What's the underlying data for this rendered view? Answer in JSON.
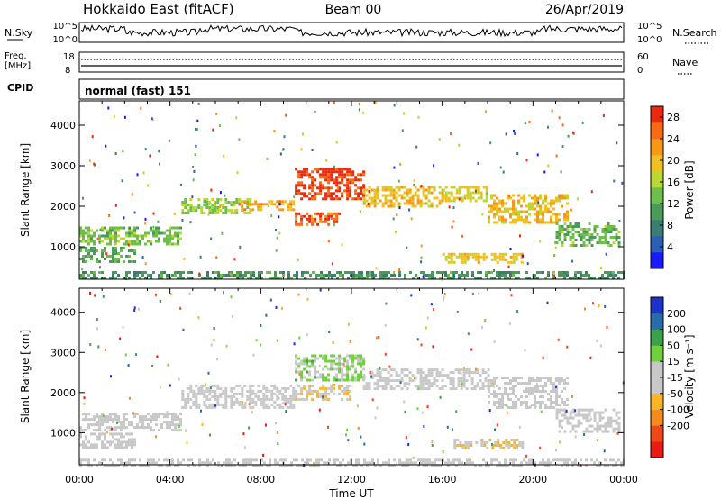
{
  "header": {
    "station": "Hokkaido East (fitACF)",
    "beam": "Beam 00",
    "date": "26/Apr/2019"
  },
  "panels": {
    "nsky": {
      "label": "N.Sky",
      "left_ticks": [
        "10^5",
        "10^0"
      ],
      "right_ticks": [
        "10^5",
        "10^0"
      ],
      "right_legend": "N.Search"
    },
    "freq": {
      "label_line1": "Freq.",
      "label_line2": "[MHz]",
      "left_ticks": [
        "18",
        "8"
      ],
      "right_ticks": [
        "60",
        "0"
      ],
      "right_legend": "Nave"
    },
    "cpid": {
      "label": "CPID",
      "text": "normal (fast) 151"
    }
  },
  "chart_data": [
    {
      "type": "heatmap",
      "parameter": "Power",
      "ylabel": "Slant Range [km]",
      "yticks": [
        "4000",
        "3000",
        "2000",
        "1000"
      ],
      "ytick_values": [
        4000,
        3000,
        2000,
        1000
      ],
      "ylim": [
        200,
        4600
      ],
      "xlim": [
        0,
        24
      ],
      "colorbar": {
        "label": "Power [dB]",
        "ticks": [
          "28",
          "24",
          "20",
          "16",
          "12",
          "8",
          "4"
        ],
        "tick_values": [
          28,
          24,
          20,
          16,
          12,
          8,
          4
        ],
        "range": [
          0,
          30
        ],
        "colors": [
          "#1a1aff",
          "#2b5fb5",
          "#3a7d73",
          "#4a9a5a",
          "#6bbf4a",
          "#b9d834",
          "#f0c020",
          "#f89818",
          "#f56a12",
          "#ea2a0e"
        ]
      },
      "regions": [
        {
          "t0": 0.0,
          "t1": 4.5,
          "r0": 1050,
          "r1": 1500,
          "power": 14
        },
        {
          "t0": 0.0,
          "t1": 2.5,
          "r0": 600,
          "r1": 1000,
          "power": 12
        },
        {
          "t0": 4.5,
          "t1": 7.5,
          "r0": 1800,
          "r1": 2200,
          "power": 15
        },
        {
          "t0": 7.0,
          "t1": 9.5,
          "r0": 1900,
          "r1": 2150,
          "power": 22
        },
        {
          "t0": 9.5,
          "t1": 12.5,
          "r0": 2200,
          "r1": 2950,
          "power": 28
        },
        {
          "t0": 9.5,
          "t1": 11.5,
          "r0": 1550,
          "r1": 1850,
          "power": 26
        },
        {
          "t0": 12.5,
          "t1": 16.0,
          "r0": 2000,
          "r1": 2500,
          "power": 20
        },
        {
          "t0": 16.0,
          "t1": 18.0,
          "r0": 2100,
          "r1": 2500,
          "power": 18
        },
        {
          "t0": 18.0,
          "t1": 21.5,
          "r0": 1600,
          "r1": 2300,
          "power": 20
        },
        {
          "t0": 21.0,
          "t1": 23.8,
          "r0": 1000,
          "r1": 1600,
          "power": 13
        },
        {
          "t0": 16.0,
          "t1": 19.5,
          "r0": 600,
          "r1": 850,
          "power": 19
        },
        {
          "t0": 0.0,
          "t1": 24.0,
          "r0": 200,
          "r1": 400,
          "power": 10
        }
      ]
    },
    {
      "type": "heatmap",
      "parameter": "Velocity",
      "ylabel": "Slant Range [km]",
      "yticks": [
        "4000",
        "3000",
        "2000",
        "1000"
      ],
      "ytick_values": [
        4000,
        3000,
        2000,
        1000
      ],
      "ylim": [
        200,
        4600
      ],
      "xlim": [
        0,
        24
      ],
      "xticks": [
        "00:00",
        "04:00",
        "08:00",
        "12:00",
        "16:00",
        "20:00",
        "00:00"
      ],
      "xtick_values": [
        0,
        4,
        8,
        12,
        16,
        20,
        24
      ],
      "xlabel": "Time UT",
      "colorbar": {
        "label": "Velocity [m s⁻¹]",
        "ticks": [
          "200",
          "100",
          "50",
          "15",
          "-15",
          "-50",
          "-100",
          "-200"
        ],
        "tick_values": [
          200,
          100,
          50,
          15,
          -15,
          -50,
          -100,
          -200
        ],
        "range": [
          -250,
          250
        ],
        "colors": [
          "#e81c14",
          "#f04818",
          "#f68a1c",
          "#fbb428",
          "#c8c8c8",
          "#c8c8c8",
          "#6fcf3c",
          "#3da04a",
          "#2a6ca8",
          "#1e32c8"
        ]
      },
      "regions": [
        {
          "t0": 0.0,
          "t1": 4.5,
          "r0": 1050,
          "r1": 1500,
          "velocity": 0
        },
        {
          "t0": 0.0,
          "t1": 2.5,
          "r0": 600,
          "r1": 1000,
          "velocity": 0
        },
        {
          "t0": 4.5,
          "t1": 9.5,
          "r0": 1600,
          "r1": 2200,
          "velocity": 0
        },
        {
          "t0": 9.5,
          "t1": 12.5,
          "r0": 2300,
          "r1": 2950,
          "velocity": 60
        },
        {
          "t0": 9.5,
          "t1": 12.0,
          "r0": 1800,
          "r1": 2200,
          "velocity": -40
        },
        {
          "t0": 12.5,
          "t1": 18.0,
          "r0": 2100,
          "r1": 2600,
          "velocity": 0
        },
        {
          "t0": 18.0,
          "t1": 21.5,
          "r0": 1600,
          "r1": 2400,
          "velocity": 0
        },
        {
          "t0": 21.0,
          "t1": 23.8,
          "r0": 1000,
          "r1": 1600,
          "velocity": 0
        },
        {
          "t0": 16.5,
          "t1": 19.5,
          "r0": 600,
          "r1": 850,
          "velocity": -40
        },
        {
          "t0": 0.0,
          "t1": 24.0,
          "r0": 200,
          "r1": 350,
          "velocity": 0
        }
      ]
    }
  ]
}
